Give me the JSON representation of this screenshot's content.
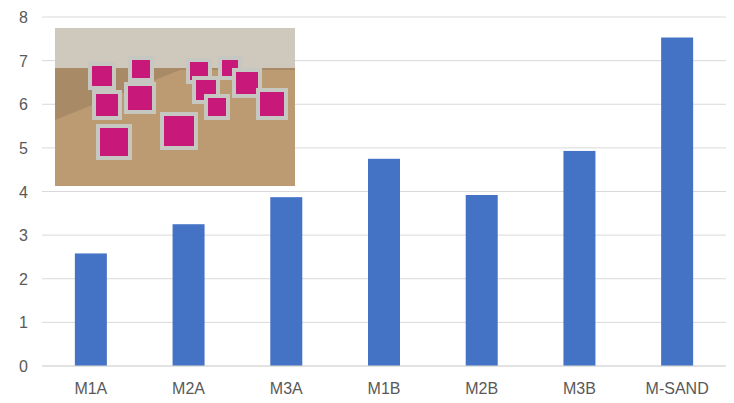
{
  "chart_data": {
    "type": "bar",
    "categories": [
      "M1A",
      "M2A",
      "M3A",
      "M1B",
      "M2B",
      "M3B",
      "M-SAND"
    ],
    "values": [
      2.58,
      3.25,
      3.87,
      4.75,
      3.92,
      4.93,
      7.53
    ],
    "color": "#4472c4",
    "ylim": [
      0,
      8
    ],
    "yticks": [
      0,
      1,
      2,
      3,
      4,
      5,
      6,
      7,
      8
    ],
    "grid": true
  }
}
